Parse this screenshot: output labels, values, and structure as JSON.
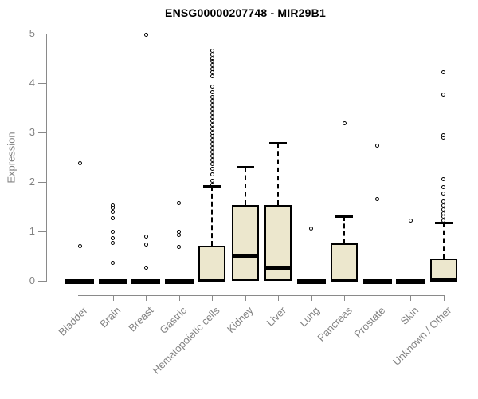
{
  "title": "ENSG00000207748 - MIR29B1",
  "chart_data": {
    "type": "box",
    "title": "ENSG00000207748 - MIR29B1",
    "xlabel": "",
    "ylabel": "Expression",
    "ylim": [
      0,
      5
    ],
    "yticks": [
      0,
      1,
      2,
      3,
      4,
      5
    ],
    "grid": false,
    "legend": null,
    "x_tick_rotation": 45,
    "categories": [
      "Bladder",
      "Brain",
      "Breast",
      "Gastric",
      "Hematopoietic cells",
      "Kidney",
      "Liver",
      "Lung",
      "Pancreas",
      "Prostate",
      "Skin",
      "Unknown / Other"
    ],
    "series": [
      {
        "name": "Bladder",
        "q1": 0,
        "median": 0,
        "q3": 0,
        "whisker_low": 0,
        "whisker_high": 0,
        "outliers": [
          2.38,
          0.7
        ]
      },
      {
        "name": "Brain",
        "q1": 0,
        "median": 0,
        "q3": 0,
        "whisker_low": 0,
        "whisker_high": 0,
        "outliers": [
          1.53,
          1.47,
          1.4,
          1.26,
          1.0,
          0.87,
          0.77,
          0.37
        ]
      },
      {
        "name": "Breast",
        "q1": 0,
        "median": 0,
        "q3": 0,
        "whisker_low": 0,
        "whisker_high": 0,
        "outliers": [
          4.98,
          0.9,
          0.73,
          0.27
        ]
      },
      {
        "name": "Gastric",
        "q1": 0,
        "median": 0,
        "q3": 0,
        "whisker_low": 0,
        "whisker_high": 0,
        "outliers": [
          1.58,
          1.0,
          0.93,
          0.68
        ]
      },
      {
        "name": "Hematopoietic cells",
        "q1": 0,
        "median": 0.02,
        "q3": 0.71,
        "whisker_low": 0,
        "whisker_high": 1.92,
        "outliers": [
          4.66,
          4.58,
          4.5,
          4.44,
          4.37,
          4.29,
          4.21,
          4.13,
          3.93,
          3.81,
          3.72,
          3.64,
          3.56,
          3.48,
          3.4,
          3.32,
          3.24,
          3.16,
          3.08,
          3.0,
          2.92,
          2.85,
          2.77,
          2.69,
          2.61,
          2.53,
          2.45,
          2.37,
          2.27,
          2.15,
          2.02,
          1.95
        ]
      },
      {
        "name": "Kidney",
        "q1": 0,
        "median": 0.52,
        "q3": 1.53,
        "whisker_low": 0,
        "whisker_high": 2.31,
        "outliers": []
      },
      {
        "name": "Liver",
        "q1": 0,
        "median": 0.27,
        "q3": 1.53,
        "whisker_low": 0,
        "whisker_high": 2.79,
        "outliers": []
      },
      {
        "name": "Lung",
        "q1": 0,
        "median": 0,
        "q3": 0,
        "whisker_low": 0,
        "whisker_high": 0,
        "outliers": [
          1.06
        ]
      },
      {
        "name": "Pancreas",
        "q1": 0,
        "median": 0.02,
        "q3": 0.76,
        "whisker_low": 0,
        "whisker_high": 1.31,
        "outliers": [
          3.18
        ]
      },
      {
        "name": "Prostate",
        "q1": 0,
        "median": 0,
        "q3": 0,
        "whisker_low": 0,
        "whisker_high": 0,
        "outliers": [
          2.74,
          1.65
        ]
      },
      {
        "name": "Skin",
        "q1": 0,
        "median": 0,
        "q3": 0,
        "whisker_low": 0,
        "whisker_high": 0,
        "outliers": [
          1.21
        ]
      },
      {
        "name": "Unknown / Other",
        "q1": 0,
        "median": 0.03,
        "q3": 0.45,
        "whisker_low": 0,
        "whisker_high": 1.18,
        "outliers": [
          4.21,
          3.77,
          2.95,
          2.9,
          2.06,
          1.9,
          1.76,
          1.6,
          1.52,
          1.44,
          1.37,
          1.3,
          1.22
        ]
      }
    ],
    "colors": {
      "box_fill": "#ece7cd",
      "box_stroke": "#000000",
      "axis": "#8a8a8a",
      "tick_label": "#838383",
      "title": "#000000",
      "background": "#ffffff"
    }
  }
}
